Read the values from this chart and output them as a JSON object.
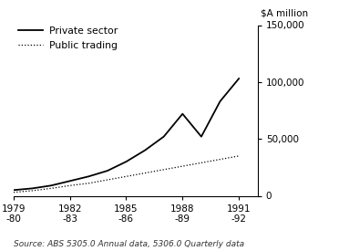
{
  "ylabel_line1": "$A million",
  "ylabel_line2": "150,000",
  "source_text": "Source: ABS 5305.0 Annual data, 5306.0 Quarterly data",
  "legend_private": "Private sector",
  "legend_public": "Public trading",
  "years": [
    1979,
    1980,
    1981,
    1982,
    1983,
    1984,
    1985,
    1986,
    1987,
    1988,
    1989,
    1990,
    1991
  ],
  "private_sector": [
    5000,
    6500,
    9000,
    13000,
    17000,
    22000,
    30000,
    40000,
    52000,
    72000,
    52000,
    83000,
    103000
  ],
  "public_trading": [
    3000,
    4500,
    6500,
    9000,
    11000,
    14000,
    17000,
    20000,
    23000,
    26000,
    29000,
    32000,
    35000
  ],
  "xlim": [
    1979,
    1992
  ],
  "ylim": [
    0,
    150000
  ],
  "yticks": [
    0,
    50000,
    100000,
    150000
  ],
  "ytick_labels": [
    "0",
    "50,000",
    "100,000",
    "150,000"
  ],
  "xtick_positions": [
    1979,
    1982,
    1985,
    1988,
    1991
  ],
  "xtick_labels": [
    "1979\n-80",
    "1982\n-83",
    "1985\n-86",
    "1988\n-89",
    "1991\n-92"
  ],
  "private_color": "#000000",
  "public_color": "#000000",
  "background_color": "#ffffff"
}
